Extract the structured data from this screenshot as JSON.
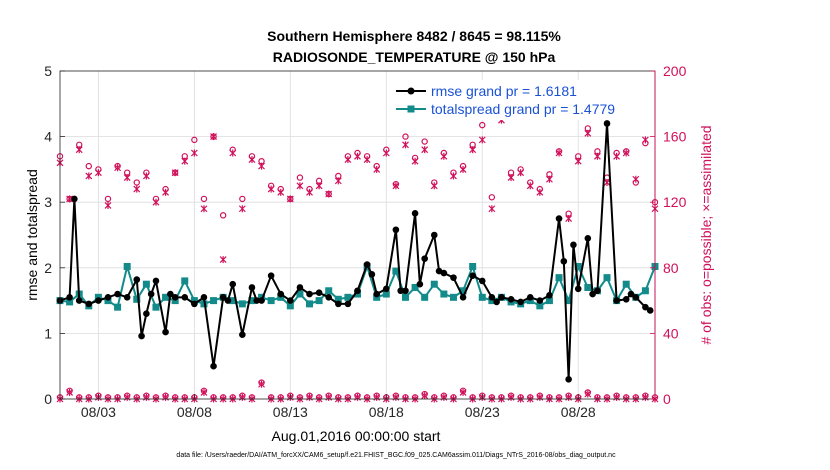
{
  "chart_data": {
    "type": "line",
    "title": "Southern Hemisphere 8482 / 8645 = 98.115%",
    "subtitle": "RADIOSONDE_TEMPERATURE @ 150 hPa",
    "xlabel": "Aug.01,2016 00:00:00 start",
    "ylabel_left": "rmse and totalspread",
    "ylabel_right": "# of obs: o=possible; ×=assimilated",
    "footer": "data file: /Users/raeder/DAI/ATM_forcXX/CAM6_setup/f.e21.FHIST_BGC.f09_025.CAM6assim.011/Diags_NTrS_2016-08/obs_diag_output.nc",
    "x_ticks": [
      "08/03",
      "08/08",
      "08/13",
      "08/18",
      "08/23",
      "08/28"
    ],
    "x_tick_values": [
      3,
      8,
      13,
      18,
      23,
      28
    ],
    "xlim": [
      1,
      32
    ],
    "ylim_left": [
      0,
      5
    ],
    "ylim_right": [
      0,
      200
    ],
    "y_ticks_left": [
      "0",
      "1",
      "2",
      "3",
      "4",
      "5"
    ],
    "y_ticks_right": [
      "0",
      "40",
      "80",
      "120",
      "160",
      "200"
    ],
    "colors": {
      "rmse": "#000000",
      "spread": "#138b8b",
      "obs": "#d0105a",
      "legend_text": "#1a52d6"
    },
    "series": [
      {
        "name": "rmse",
        "legend": "rmse grand pr = 1.6181",
        "x": [
          1.0,
          1.5,
          1.75,
          2.0,
          2.5,
          3.0,
          3.5,
          4.0,
          4.5,
          5.0,
          5.25,
          5.5,
          5.75,
          6.0,
          6.5,
          6.75,
          7.0,
          7.5,
          8.0,
          8.5,
          9.0,
          9.5,
          9.75,
          10.0,
          10.5,
          11.0,
          11.25,
          11.5,
          12.0,
          12.5,
          13.0,
          13.5,
          14.0,
          14.5,
          15.0,
          15.5,
          16.0,
          16.5,
          17.0,
          17.25,
          17.5,
          18.0,
          18.5,
          18.75,
          19.0,
          19.5,
          19.75,
          20.0,
          20.5,
          20.75,
          21.0,
          21.5,
          22.0,
          22.5,
          23.0,
          23.5,
          23.75,
          24.0,
          24.5,
          25.0,
          25.5,
          26.0,
          26.5,
          27.0,
          27.25,
          27.5,
          27.75,
          28.0,
          28.5,
          28.75,
          29.0,
          29.5,
          30.0,
          30.5,
          30.75,
          31.0,
          31.5,
          31.75
        ],
        "values": [
          1.5,
          1.55,
          3.05,
          1.5,
          1.45,
          1.5,
          1.55,
          1.6,
          1.55,
          1.82,
          0.96,
          1.3,
          1.6,
          1.8,
          1.02,
          1.6,
          1.55,
          1.55,
          1.45,
          1.55,
          0.5,
          1.55,
          1.5,
          1.75,
          0.98,
          1.7,
          1.5,
          1.5,
          1.88,
          1.6,
          1.5,
          1.7,
          1.6,
          1.62,
          1.55,
          1.45,
          1.45,
          1.65,
          2.05,
          1.9,
          1.6,
          1.68,
          2.58,
          1.65,
          1.65,
          2.83,
          1.75,
          2.14,
          2.5,
          1.95,
          1.92,
          1.85,
          1.55,
          1.88,
          1.8,
          1.55,
          1.48,
          1.55,
          1.52,
          1.48,
          1.55,
          1.5,
          1.58,
          2.75,
          2.1,
          0.3,
          2.35,
          1.68,
          2.45,
          1.6,
          1.65,
          4.2,
          1.5,
          1.52,
          1.6,
          1.55,
          1.4,
          1.35
        ]
      },
      {
        "name": "totalspread",
        "legend": "totalspread grand pr = 1.4779",
        "x": [
          1.0,
          1.5,
          2.0,
          2.5,
          3.0,
          3.5,
          4.0,
          4.5,
          5.0,
          5.5,
          6.0,
          6.5,
          7.0,
          7.5,
          8.0,
          8.5,
          9.0,
          9.5,
          10.0,
          10.5,
          11.0,
          11.5,
          12.0,
          12.5,
          13.0,
          13.5,
          14.0,
          14.5,
          15.0,
          15.5,
          16.0,
          16.5,
          17.0,
          17.5,
          18.0,
          18.5,
          19.0,
          19.5,
          20.0,
          20.5,
          21.0,
          21.5,
          22.0,
          22.5,
          23.0,
          23.5,
          24.0,
          24.5,
          25.0,
          25.5,
          26.0,
          26.5,
          27.0,
          27.5,
          28.0,
          28.5,
          29.0,
          29.5,
          30.0,
          30.5,
          31.0,
          31.5,
          32.0
        ],
        "values": [
          1.5,
          1.48,
          1.6,
          1.42,
          1.55,
          1.5,
          1.4,
          2.02,
          1.52,
          1.75,
          1.4,
          1.55,
          1.5,
          1.8,
          1.5,
          1.45,
          1.5,
          1.55,
          1.5,
          1.45,
          1.5,
          1.55,
          1.5,
          1.55,
          1.42,
          1.6,
          1.45,
          1.5,
          1.65,
          1.52,
          1.55,
          1.6,
          2.02,
          1.55,
          1.6,
          1.95,
          1.55,
          1.7,
          1.55,
          1.75,
          1.6,
          1.55,
          1.65,
          2.02,
          1.55,
          1.5,
          1.55,
          1.48,
          1.45,
          1.5,
          1.42,
          1.5,
          1.85,
          1.5,
          2.02,
          1.7,
          1.65,
          1.85,
          1.5,
          1.75,
          1.55,
          1.65,
          2.02
        ]
      }
    ],
    "obs_possible": {
      "marker": "o",
      "x": [
        1.0,
        1.5,
        2.0,
        2.5,
        3.0,
        3.5,
        4.0,
        4.5,
        5.0,
        5.5,
        6.0,
        6.5,
        7.0,
        7.5,
        8.0,
        8.5,
        9.0,
        9.5,
        10.0,
        10.5,
        11.0,
        11.5,
        12.0,
        12.5,
        13.0,
        13.5,
        14.0,
        14.5,
        15.0,
        15.5,
        16.0,
        16.5,
        17.0,
        17.5,
        18.0,
        18.5,
        19.0,
        19.5,
        20.0,
        20.5,
        21.0,
        21.5,
        22.0,
        22.5,
        23.0,
        23.5,
        24.0,
        24.5,
        25.0,
        25.5,
        26.0,
        26.5,
        27.0,
        27.5,
        28.0,
        28.5,
        29.0,
        29.5,
        30.0,
        30.5,
        31.0,
        31.5,
        32.0
      ],
      "values": [
        148,
        122,
        155,
        142,
        140,
        122,
        142,
        138,
        132,
        138,
        122,
        128,
        138,
        148,
        158,
        122,
        160,
        112,
        152,
        122,
        148,
        145,
        130,
        128,
        122,
        135,
        128,
        133,
        125,
        136,
        148,
        150,
        148,
        142,
        152,
        131,
        160,
        147,
        157,
        132,
        150,
        138,
        142,
        155,
        167,
        123,
        173,
        138,
        140,
        132,
        128,
        137,
        151,
        113,
        148,
        165,
        151,
        135,
        150,
        151,
        132,
        156,
        120
      ]
    },
    "obs_assimilated": {
      "marker": "x",
      "x": [
        1.0,
        1.5,
        2.0,
        2.5,
        3.0,
        3.5,
        4.0,
        4.5,
        5.0,
        5.5,
        6.0,
        6.5,
        7.0,
        7.5,
        8.0,
        8.5,
        9.0,
        9.5,
        10.0,
        10.5,
        11.0,
        11.5,
        12.0,
        12.5,
        13.0,
        13.5,
        14.0,
        14.5,
        15.0,
        15.5,
        16.0,
        16.5,
        17.0,
        17.5,
        18.0,
        18.5,
        19.0,
        19.5,
        20.0,
        20.5,
        21.0,
        21.5,
        22.0,
        22.5,
        23.0,
        23.5,
        24.0,
        24.5,
        25.0,
        25.5,
        26.0,
        26.5,
        27.0,
        27.5,
        28.0,
        28.5,
        29.0,
        29.5,
        30.0,
        30.5,
        31.0,
        31.5,
        32.0
      ],
      "values": [
        144,
        122,
        152,
        136,
        138,
        118,
        141,
        135,
        128,
        136,
        120,
        126,
        138,
        145,
        150,
        116,
        160,
        85,
        150,
        116,
        146,
        142,
        128,
        126,
        122,
        130,
        126,
        130,
        125,
        133,
        146,
        148,
        146,
        140,
        150,
        130,
        155,
        145,
        152,
        130,
        148,
        136,
        140,
        152,
        158,
        116,
        170,
        135,
        138,
        130,
        126,
        134,
        150,
        110,
        145,
        162,
        148,
        132,
        148,
        150,
        134,
        158,
        116
      ]
    },
    "obs_bottom_possible": {
      "x": [
        1.0,
        1.5,
        2.0,
        2.5,
        3.0,
        3.5,
        4.0,
        4.5,
        5.0,
        5.5,
        6.0,
        6.5,
        7.0,
        7.5,
        8.0,
        8.5,
        9.0,
        9.5,
        10.0,
        10.5,
        11.0,
        11.5,
        12.0,
        12.5,
        13.0,
        13.5,
        14.0,
        14.5,
        15.0,
        15.5,
        16.0,
        16.5,
        17.0,
        17.5,
        18.0,
        18.5,
        19.0,
        19.5,
        20.0,
        20.5,
        21.0,
        21.5,
        22.0,
        22.5,
        23.0,
        23.5,
        24.0,
        24.5,
        25.0,
        25.5,
        26.0,
        26.5,
        27.0,
        27.5,
        28.0,
        28.5,
        29.0,
        29.5,
        30.0,
        30.5,
        31.0,
        31.5,
        32.0
      ],
      "values": [
        1,
        5,
        1,
        1,
        2,
        1,
        1,
        2,
        1,
        2,
        1,
        2,
        1,
        1,
        1,
        5,
        1,
        1,
        1,
        2,
        1,
        10,
        1,
        1,
        2,
        1,
        2,
        1,
        2,
        1,
        1,
        2,
        1,
        2,
        1,
        2,
        1,
        1,
        3,
        1,
        2,
        1,
        5,
        1,
        2,
        1,
        1,
        2,
        1,
        1,
        2,
        1,
        1,
        2,
        1,
        4,
        1,
        1,
        2,
        1,
        1,
        2,
        1
      ]
    },
    "obs_bottom_assimilated": {
      "x": [
        1.0,
        1.5,
        2.0,
        2.5,
        3.0,
        3.5,
        4.0,
        4.5,
        5.0,
        5.5,
        6.0,
        6.5,
        7.0,
        7.5,
        8.0,
        8.5,
        9.0,
        9.5,
        10.0,
        10.5,
        11.0,
        11.5,
        12.0,
        12.5,
        13.0,
        13.5,
        14.0,
        14.5,
        15.0,
        15.5,
        16.0,
        16.5,
        17.0,
        17.5,
        18.0,
        18.5,
        19.0,
        19.5,
        20.0,
        20.5,
        21.0,
        21.5,
        22.0,
        22.5,
        23.0,
        23.5,
        24.0,
        24.5,
        25.0,
        25.5,
        26.0,
        26.5,
        27.0,
        27.5,
        28.0,
        28.5,
        29.0,
        29.5,
        30.0,
        30.5,
        31.0,
        31.5,
        32.0
      ],
      "values": [
        0,
        4,
        0,
        0,
        1,
        0,
        0,
        1,
        0,
        1,
        0,
        1,
        0,
        0,
        0,
        4,
        0,
        0,
        0,
        1,
        0,
        9,
        0,
        0,
        1,
        0,
        1,
        0,
        1,
        0,
        0,
        1,
        0,
        1,
        0,
        1,
        0,
        0,
        2,
        0,
        1,
        0,
        4,
        0,
        1,
        0,
        0,
        1,
        0,
        0,
        1,
        0,
        0,
        1,
        0,
        3,
        0,
        0,
        1,
        0,
        0,
        1,
        0
      ]
    }
  }
}
